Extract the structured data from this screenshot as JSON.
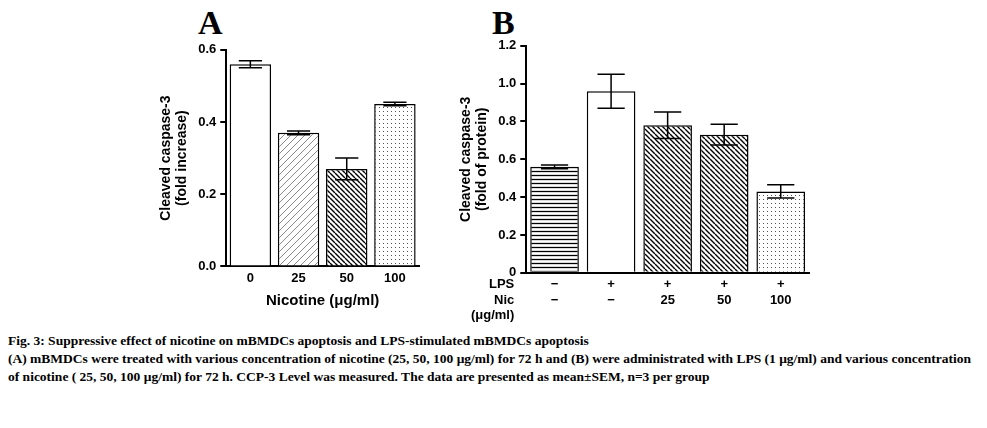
{
  "chart_data": [
    {
      "type": "bar",
      "title": "A",
      "categories": [
        "0",
        "25",
        "50",
        "100"
      ],
      "values": [
        0.56,
        0.37,
        0.27,
        0.45
      ],
      "errors": [
        0.01,
        0.005,
        0.03,
        0.005
      ],
      "x_label": "Nicotine (μg/ml)",
      "y_label": [
        "Cleaved caspase-3",
        "(fold increase)"
      ],
      "ylim": [
        0,
        0.6
      ],
      "yticks": [
        {
          "value": 0,
          "label": "0.0"
        },
        0.2,
        0.4,
        0.6
      ],
      "color": "#000000",
      "grid": false
    },
    {
      "type": "bar",
      "title": "B",
      "categories": [
        [
          "−",
          "−"
        ],
        [
          "+",
          "−"
        ],
        [
          "+",
          "25"
        ],
        [
          "+",
          "50"
        ],
        [
          "+",
          "100"
        ]
      ],
      "row_labels": [
        [
          "LPS"
        ],
        [
          "Nic",
          "(μg/ml)"
        ]
      ],
      "values": [
        0.56,
        0.96,
        0.78,
        0.73,
        0.43
      ],
      "errors": [
        0.01,
        0.09,
        0.07,
        0.055,
        0.035
      ],
      "y_label": [
        "Cleaved caspase-3",
        "(fold of protein)"
      ],
      "ylim": [
        0,
        1.2
      ],
      "yticks": [
        0,
        0.2,
        0.4,
        0.6,
        0.8,
        {
          "value": 1,
          "label": "1.0"
        },
        1.2
      ],
      "color": "#000000",
      "grid": false
    }
  ],
  "caption": {
    "title": "Fig. 3: Suppressive effect of nicotine on mBMDCs apoptosis and LPS-stimulated mBMDCs apoptosis",
    "text": "(A) mBMDCs were treated with various concentration of nicotine (25, 50, 100 μg/ml) for 72 h and (B) were administrated with LPS (1 μg/ml) and various concentration of nicotine ( 25, 50, 100 μg/ml) for 72 h. CCP-3 Level was measured. The data are presented as mean±SEM, n=3 per group"
  }
}
